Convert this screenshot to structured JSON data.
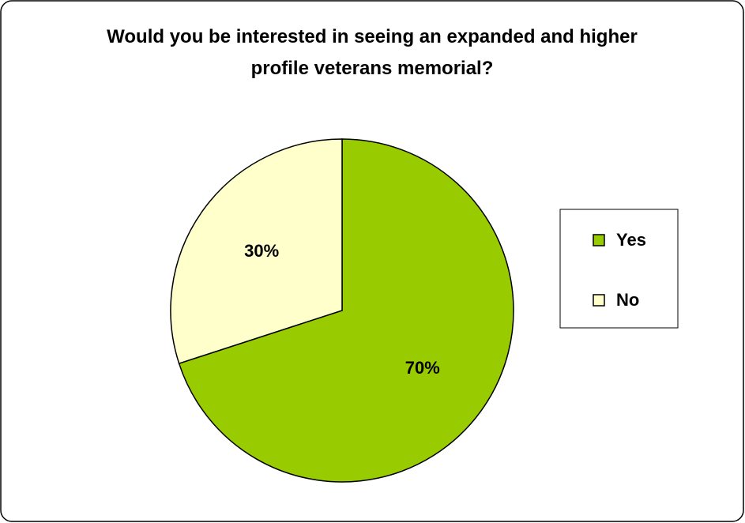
{
  "chart_data": {
    "type": "pie",
    "title": "Would you be interested in seeing an expanded and higher profile veterans memorial?",
    "categories": [
      "Yes",
      "No"
    ],
    "values": [
      70,
      30
    ],
    "value_labels": [
      "70%",
      "30%"
    ],
    "colors": [
      "#99cc00",
      "#ffffcc"
    ],
    "legend": "right"
  }
}
